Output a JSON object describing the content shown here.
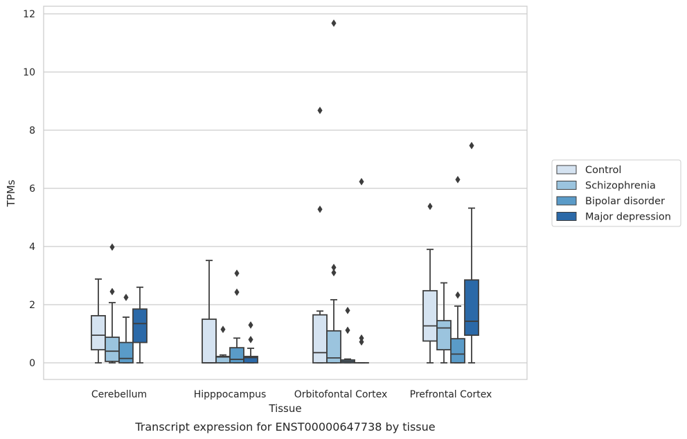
{
  "chart_data": {
    "type": "boxplot",
    "title": "",
    "caption": "Transcript expression for ENST00000647738 by tissue",
    "xlabel": "Tissue",
    "ylabel": "TPMs",
    "ylim": [
      -0.55,
      12.35
    ],
    "yticks": [
      0,
      2,
      4,
      6,
      8,
      10,
      12
    ],
    "grid": true,
    "legend_position": "right",
    "categories": [
      "Cerebellum",
      "Hipppocampus",
      "Orbitofontal Cortex",
      "Prefrontal Cortex"
    ],
    "series": [
      {
        "name": "Control",
        "color": "#d5e3f1",
        "boxes": [
          {
            "whislo": 0.0,
            "q1": 0.45,
            "med": 0.95,
            "q3": 1.62,
            "whishi": 2.88,
            "fliers": []
          },
          {
            "whislo": 0.0,
            "q1": 0.0,
            "med": 0.0,
            "q3": 1.5,
            "whishi": 3.52,
            "fliers": []
          },
          {
            "whislo": 0.0,
            "q1": 0.0,
            "med": 0.35,
            "q3": 1.65,
            "whishi": 1.78,
            "fliers": [
              5.28,
              8.68
            ]
          },
          {
            "whislo": 0.0,
            "q1": 0.75,
            "med": 1.27,
            "q3": 2.48,
            "whishi": 3.9,
            "fliers": [
              5.38
            ]
          }
        ]
      },
      {
        "name": "Schizophrenia",
        "color": "#9bc4de",
        "boxes": [
          {
            "whislo": 0.0,
            "q1": 0.05,
            "med": 0.4,
            "q3": 0.88,
            "whishi": 2.07,
            "fliers": [
              2.45,
              3.98
            ]
          },
          {
            "whislo": 0.0,
            "q1": 0.0,
            "med": 0.2,
            "q3": 0.22,
            "whishi": 0.27,
            "fliers": [
              1.15
            ]
          },
          {
            "whislo": 0.0,
            "q1": 0.0,
            "med": 0.17,
            "q3": 1.1,
            "whishi": 2.17,
            "fliers": [
              3.1,
              3.28,
              11.68
            ]
          },
          {
            "whislo": 0.0,
            "q1": 0.45,
            "med": 1.2,
            "q3": 1.45,
            "whishi": 2.75,
            "fliers": []
          }
        ]
      },
      {
        "name": "Bipolar disorder",
        "color": "#5a9bc8",
        "boxes": [
          {
            "whislo": 0.0,
            "q1": 0.0,
            "med": 0.15,
            "q3": 0.7,
            "whishi": 1.57,
            "fliers": [
              2.25
            ]
          },
          {
            "whislo": 0.0,
            "q1": 0.0,
            "med": 0.12,
            "q3": 0.52,
            "whishi": 0.85,
            "fliers": [
              2.43,
              3.08
            ]
          },
          {
            "whislo": 0.0,
            "q1": 0.0,
            "med": 0.05,
            "q3": 0.1,
            "whishi": 0.13,
            "fliers": [
              1.12,
              1.8
            ]
          },
          {
            "whislo": 0.0,
            "q1": 0.0,
            "med": 0.3,
            "q3": 0.83,
            "whishi": 1.95,
            "fliers": [
              2.33,
              6.3
            ]
          }
        ]
      },
      {
        "name": "Major depression",
        "color": "#2b69a8",
        "boxes": [
          {
            "whislo": 0.0,
            "q1": 0.7,
            "med": 1.35,
            "q3": 1.85,
            "whishi": 2.6,
            "fliers": []
          },
          {
            "whislo": 0.0,
            "q1": 0.0,
            "med": 0.18,
            "q3": 0.22,
            "whishi": 0.5,
            "fliers": [
              0.8,
              1.3
            ]
          },
          {
            "whislo": 0.0,
            "q1": 0.0,
            "med": 0.0,
            "q3": 0.0,
            "whishi": 0.0,
            "fliers": [
              0.72,
              0.85,
              6.23
            ]
          },
          {
            "whislo": 0.0,
            "q1": 0.95,
            "med": 1.43,
            "q3": 2.85,
            "whishi": 5.32,
            "fliers": [
              7.47
            ]
          }
        ]
      }
    ]
  }
}
